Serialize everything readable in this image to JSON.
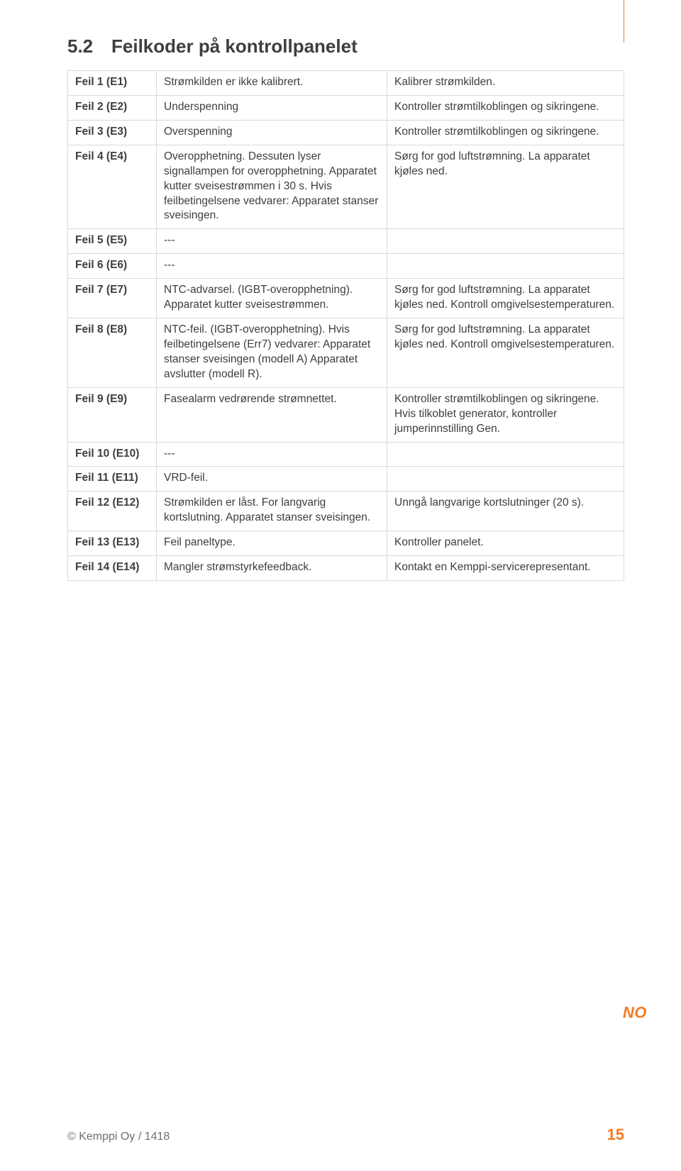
{
  "colors": {
    "accent": "#f47b20",
    "text": "#3e3e3e",
    "border": "#d9d9d9",
    "muted": "#6e6e6e",
    "background": "#ffffff"
  },
  "typography": {
    "heading_fontsize_pt": 20,
    "body_fontsize_pt": 11.5,
    "footer_fontsize_pt": 12,
    "pageno_fontsize_pt": 17,
    "font_family": "Myriad Pro / sans-serif"
  },
  "heading": {
    "number": "5.2",
    "title": "Feilkoder på kontrollpanelet"
  },
  "rows": [
    {
      "code": "Feil 1 (E1)",
      "desc": "Strømkilden er ikke kalibrert.",
      "action": "Kalibrer strømkilden."
    },
    {
      "code": "Feil 2 (E2)",
      "desc": "Underspenning",
      "action": "Kontroller strømtilkoblingen og sikringene."
    },
    {
      "code": "Feil 3 (E3)",
      "desc": "Overspenning",
      "action": "Kontroller strømtilkoblingen og sikringene."
    },
    {
      "code": "Feil 4 (E4)",
      "desc": "Overopphetning. Dessuten lyser signallampen for overopphetning. Apparatet kutter sveisestrømmen i 30 s. Hvis feilbetingelsene vedvarer:\nApparatet stanser sveisingen.",
      "action": "Sørg for god luftstrømning. La apparatet kjøles ned."
    },
    {
      "code": "Feil 5 (E5)",
      "desc": "---",
      "action": ""
    },
    {
      "code": "Feil 6 (E6)",
      "desc": "---",
      "action": ""
    },
    {
      "code": "Feil 7 (E7)",
      "desc": "NTC-advarsel. (IGBT-overopphetning). Apparatet kutter sveisestrømmen.",
      "action": "Sørg for god luftstrømning. La apparatet kjøles ned. Kontroll omgivelsestemperaturen."
    },
    {
      "code": "Feil 8 (E8)",
      "desc": "NTC-feil. (IGBT-overopphetning). Hvis feilbetingelsene (Err7) vedvarer:\nApparatet stanser sveisingen (modell A)\nApparatet avslutter (modell R).",
      "action": "Sørg for god luftstrømning. La apparatet kjøles ned. Kontroll omgivelsestemperaturen."
    },
    {
      "code": "Feil 9 (E9)",
      "desc": "Fasealarm vedrørende strømnettet.",
      "action": "Kontroller strømtilkoblingen og sikringene. Hvis tilkoblet generator, kontroller jumperinnstilling Gen."
    },
    {
      "code": "Feil 10 (E10)",
      "desc": "---",
      "action": ""
    },
    {
      "code": "Feil 11 (E11)",
      "desc": "VRD-feil.",
      "action": ""
    },
    {
      "code": "Feil 12 (E12)",
      "desc": "Strømkilden er låst. For langvarig kortslutning. Apparatet stanser sveisingen.",
      "action": "Unngå langvarige kortslutninger (20 s)."
    },
    {
      "code": "Feil 13 (E13)",
      "desc": "Feil paneltype.",
      "action": "Kontroller panelet."
    },
    {
      "code": "Feil 14 (E14)",
      "desc": "Mangler strømstyrkefeedback.",
      "action": "Kontakt en Kemppi-servicerepresentant."
    }
  ],
  "lang_tag": "NO",
  "footer": {
    "copyright": "© Kemppi Oy / 1418",
    "page": "15"
  }
}
